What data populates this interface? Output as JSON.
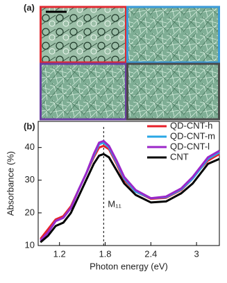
{
  "image_panel": {
    "label": "(a)"
  },
  "chart_data": {
    "type": "line",
    "label": "(b)",
    "x_label": "Photon energy (eV)",
    "y_label": "Absorbance (%)",
    "xlim": [
      0.92,
      3.3
    ],
    "ylim": [
      10,
      48
    ],
    "xticks": [
      1.2,
      1.8,
      2.4,
      3.0
    ],
    "yticks": [
      10,
      20,
      30,
      40
    ],
    "x": [
      0.95,
      1.05,
      1.15,
      1.2,
      1.25,
      1.35,
      1.45,
      1.55,
      1.65,
      1.72,
      1.78,
      1.85,
      1.95,
      2.05,
      2.2,
      2.4,
      2.6,
      2.8,
      2.95,
      3.05,
      3.15,
      3.3
    ],
    "series": [
      {
        "name": "QD-CNT-h",
        "color": "#e8202a",
        "values": [
          12,
          15,
          18,
          18.5,
          19,
          22,
          27,
          32,
          37,
          40,
          40.5,
          39.5,
          35,
          30,
          26.5,
          24.3,
          24.6,
          27,
          30.5,
          33.5,
          36,
          38
        ]
      },
      {
        "name": "QD-CNT-m",
        "color": "#2aa7e6",
        "values": [
          11.5,
          14,
          17.5,
          18,
          18.5,
          21.5,
          27,
          32,
          37.5,
          41,
          41.5,
          40,
          35.5,
          30.5,
          26.5,
          24.5,
          24.8,
          27.2,
          30.5,
          33.5,
          36.5,
          38.5
        ]
      },
      {
        "name": "QD-CNT-l",
        "color": "#9b27c9",
        "values": [
          11.5,
          14,
          17.5,
          18,
          18.5,
          21.5,
          27,
          32,
          38,
          41.5,
          42,
          40.5,
          36,
          31,
          27,
          24.5,
          25,
          27.5,
          31,
          34,
          37,
          39
        ]
      },
      {
        "name": "CNT",
        "color": "#000000",
        "values": [
          11,
          13,
          16,
          16.5,
          17,
          20,
          25,
          30,
          35,
          37.5,
          38,
          37,
          33,
          29,
          25.5,
          23.2,
          23.5,
          26,
          29,
          32,
          35,
          36.5
        ]
      }
    ],
    "annotation": {
      "text": "M₁₁",
      "x": 1.78
    },
    "legend": "upper right"
  }
}
